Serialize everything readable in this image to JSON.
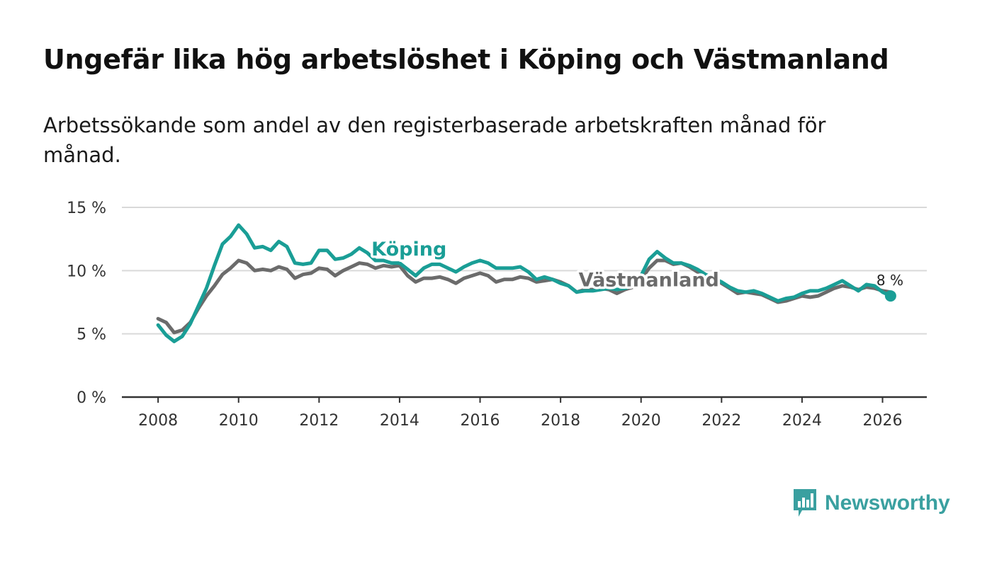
{
  "title": "Ungefär lika hög arbetslöshet i Köping och Västmanland",
  "subtitle": "Arbetssökande som andel av den registerbaserade arbetskraften månad för månad.",
  "brand": {
    "name": "Newsworthy",
    "color": "#3aa0a0",
    "icon": "bar-chart-bubble-icon"
  },
  "chart_data": {
    "type": "line",
    "title": "Ungefär lika hög arbetslöshet i Köping och Västmanland",
    "xlabel": "",
    "ylabel": "",
    "xlim": [
      2007.1,
      2027.1
    ],
    "ylim": [
      0,
      15
    ],
    "x_ticks": [
      2008,
      2010,
      2012,
      2014,
      2016,
      2018,
      2020,
      2022,
      2024,
      2026
    ],
    "x_tick_labels": [
      "2008",
      "2010",
      "2012",
      "2014",
      "2016",
      "2018",
      "2020",
      "2022",
      "2024",
      "2026"
    ],
    "y_ticks": [
      0,
      5,
      10,
      15
    ],
    "y_tick_labels": [
      "0 %",
      "5 %",
      "10 %",
      "15 %"
    ],
    "grid": true,
    "end_label": "8 %",
    "series": [
      {
        "name": "Västmanland",
        "color": "#6b6b6b",
        "points": [
          [
            2008.0,
            6.2
          ],
          [
            2008.2,
            5.9
          ],
          [
            2008.4,
            5.1
          ],
          [
            2008.6,
            5.3
          ],
          [
            2008.8,
            5.9
          ],
          [
            2009.0,
            7.0
          ],
          [
            2009.2,
            8.0
          ],
          [
            2009.4,
            8.8
          ],
          [
            2009.6,
            9.7
          ],
          [
            2009.8,
            10.2
          ],
          [
            2010.0,
            10.8
          ],
          [
            2010.2,
            10.6
          ],
          [
            2010.4,
            10.0
          ],
          [
            2010.6,
            10.1
          ],
          [
            2010.8,
            10.0
          ],
          [
            2011.0,
            10.3
          ],
          [
            2011.2,
            10.1
          ],
          [
            2011.4,
            9.4
          ],
          [
            2011.6,
            9.7
          ],
          [
            2011.8,
            9.8
          ],
          [
            2012.0,
            10.2
          ],
          [
            2012.2,
            10.1
          ],
          [
            2012.4,
            9.6
          ],
          [
            2012.6,
            10.0
          ],
          [
            2012.8,
            10.3
          ],
          [
            2013.0,
            10.6
          ],
          [
            2013.2,
            10.5
          ],
          [
            2013.4,
            10.2
          ],
          [
            2013.6,
            10.4
          ],
          [
            2013.8,
            10.3
          ],
          [
            2014.0,
            10.4
          ],
          [
            2014.2,
            9.6
          ],
          [
            2014.4,
            9.1
          ],
          [
            2014.6,
            9.4
          ],
          [
            2014.8,
            9.4
          ],
          [
            2015.0,
            9.5
          ],
          [
            2015.2,
            9.3
          ],
          [
            2015.4,
            9.0
          ],
          [
            2015.6,
            9.4
          ],
          [
            2015.8,
            9.6
          ],
          [
            2016.0,
            9.8
          ],
          [
            2016.2,
            9.6
          ],
          [
            2016.4,
            9.1
          ],
          [
            2016.6,
            9.3
          ],
          [
            2016.8,
            9.3
          ],
          [
            2017.0,
            9.5
          ],
          [
            2017.2,
            9.4
          ],
          [
            2017.4,
            9.1
          ],
          [
            2017.6,
            9.2
          ],
          [
            2017.8,
            9.3
          ],
          [
            2018.0,
            9.1
          ],
          [
            2018.2,
            8.8
          ],
          [
            2018.4,
            8.3
          ],
          [
            2018.6,
            8.5
          ],
          [
            2018.8,
            8.5
          ],
          [
            2019.0,
            8.6
          ],
          [
            2019.2,
            8.5
          ],
          [
            2019.4,
            8.2
          ],
          [
            2019.6,
            8.5
          ],
          [
            2019.8,
            8.7
          ],
          [
            2020.0,
            9.3
          ],
          [
            2020.2,
            10.2
          ],
          [
            2020.4,
            10.8
          ],
          [
            2020.6,
            10.8
          ],
          [
            2020.8,
            10.5
          ],
          [
            2021.0,
            10.6
          ],
          [
            2021.2,
            10.3
          ],
          [
            2021.4,
            9.9
          ],
          [
            2021.6,
            9.6
          ],
          [
            2021.8,
            9.4
          ],
          [
            2022.0,
            9.0
          ],
          [
            2022.2,
            8.6
          ],
          [
            2022.4,
            8.2
          ],
          [
            2022.6,
            8.3
          ],
          [
            2022.8,
            8.2
          ],
          [
            2023.0,
            8.1
          ],
          [
            2023.2,
            7.8
          ],
          [
            2023.4,
            7.5
          ],
          [
            2023.6,
            7.6
          ],
          [
            2023.8,
            7.8
          ],
          [
            2024.0,
            8.0
          ],
          [
            2024.2,
            7.9
          ],
          [
            2024.4,
            8.0
          ],
          [
            2024.6,
            8.3
          ],
          [
            2024.8,
            8.6
          ],
          [
            2025.0,
            8.8
          ],
          [
            2025.2,
            8.7
          ],
          [
            2025.4,
            8.5
          ],
          [
            2025.6,
            8.7
          ],
          [
            2025.8,
            8.6
          ],
          [
            2026.0,
            8.4
          ],
          [
            2026.2,
            8.3
          ]
        ]
      },
      {
        "name": "Köping",
        "color": "#1a9e96",
        "points": [
          [
            2008.0,
            5.7
          ],
          [
            2008.2,
            4.9
          ],
          [
            2008.4,
            4.4
          ],
          [
            2008.6,
            4.8
          ],
          [
            2008.8,
            5.8
          ],
          [
            2009.0,
            7.2
          ],
          [
            2009.2,
            8.6
          ],
          [
            2009.4,
            10.4
          ],
          [
            2009.6,
            12.1
          ],
          [
            2009.8,
            12.7
          ],
          [
            2010.0,
            13.6
          ],
          [
            2010.2,
            12.9
          ],
          [
            2010.4,
            11.8
          ],
          [
            2010.6,
            11.9
          ],
          [
            2010.8,
            11.6
          ],
          [
            2011.0,
            12.3
          ],
          [
            2011.2,
            11.9
          ],
          [
            2011.4,
            10.6
          ],
          [
            2011.6,
            10.5
          ],
          [
            2011.8,
            10.6
          ],
          [
            2012.0,
            11.6
          ],
          [
            2012.2,
            11.6
          ],
          [
            2012.4,
            10.9
          ],
          [
            2012.6,
            11.0
          ],
          [
            2012.8,
            11.3
          ],
          [
            2013.0,
            11.8
          ],
          [
            2013.2,
            11.4
          ],
          [
            2013.4,
            10.8
          ],
          [
            2013.6,
            10.8
          ],
          [
            2013.8,
            10.6
          ],
          [
            2014.0,
            10.6
          ],
          [
            2014.2,
            10.1
          ],
          [
            2014.4,
            9.6
          ],
          [
            2014.6,
            10.2
          ],
          [
            2014.8,
            10.5
          ],
          [
            2015.0,
            10.5
          ],
          [
            2015.2,
            10.2
          ],
          [
            2015.4,
            9.9
          ],
          [
            2015.6,
            10.3
          ],
          [
            2015.8,
            10.6
          ],
          [
            2016.0,
            10.8
          ],
          [
            2016.2,
            10.6
          ],
          [
            2016.4,
            10.2
          ],
          [
            2016.6,
            10.2
          ],
          [
            2016.8,
            10.2
          ],
          [
            2017.0,
            10.3
          ],
          [
            2017.2,
            9.9
          ],
          [
            2017.4,
            9.3
          ],
          [
            2017.6,
            9.5
          ],
          [
            2017.8,
            9.3
          ],
          [
            2018.0,
            9.0
          ],
          [
            2018.2,
            8.8
          ],
          [
            2018.4,
            8.3
          ],
          [
            2018.6,
            8.4
          ],
          [
            2018.8,
            8.4
          ],
          [
            2019.0,
            8.5
          ],
          [
            2019.2,
            8.6
          ],
          [
            2019.4,
            8.5
          ],
          [
            2019.6,
            8.6
          ],
          [
            2019.8,
            8.8
          ],
          [
            2020.0,
            9.6
          ],
          [
            2020.2,
            10.9
          ],
          [
            2020.4,
            11.5
          ],
          [
            2020.6,
            11.0
          ],
          [
            2020.8,
            10.6
          ],
          [
            2021.0,
            10.6
          ],
          [
            2021.2,
            10.4
          ],
          [
            2021.4,
            10.1
          ],
          [
            2021.6,
            9.7
          ],
          [
            2021.8,
            9.4
          ],
          [
            2022.0,
            9.1
          ],
          [
            2022.2,
            8.7
          ],
          [
            2022.4,
            8.4
          ],
          [
            2022.6,
            8.3
          ],
          [
            2022.8,
            8.4
          ],
          [
            2023.0,
            8.2
          ],
          [
            2023.2,
            7.9
          ],
          [
            2023.4,
            7.6
          ],
          [
            2023.6,
            7.8
          ],
          [
            2023.8,
            7.9
          ],
          [
            2024.0,
            8.2
          ],
          [
            2024.2,
            8.4
          ],
          [
            2024.4,
            8.4
          ],
          [
            2024.6,
            8.6
          ],
          [
            2024.8,
            8.9
          ],
          [
            2025.0,
            9.2
          ],
          [
            2025.2,
            8.8
          ],
          [
            2025.4,
            8.4
          ],
          [
            2025.6,
            8.9
          ],
          [
            2025.8,
            8.8
          ],
          [
            2026.0,
            8.3
          ],
          [
            2026.2,
            8.0
          ]
        ]
      }
    ]
  }
}
